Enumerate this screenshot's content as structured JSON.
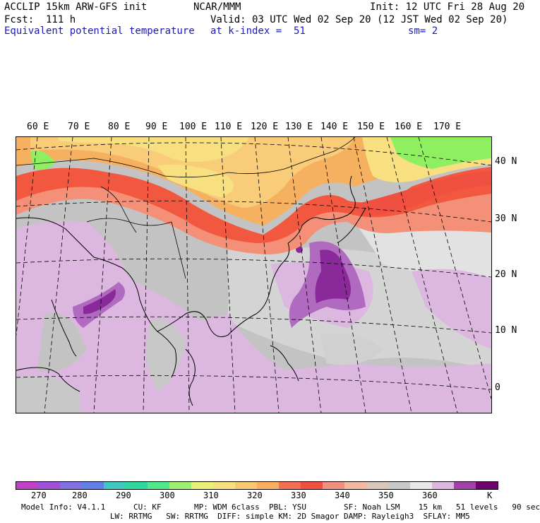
{
  "header": {
    "line1_left": "ACCLIP 15km ARW-GFS init",
    "line1_center": "NCAR/MMM",
    "line1_right": "Init: 12 UTC Fri 28 Aug 20",
    "line2_left": "Fcst:  111 h",
    "line2_right": "Valid: 03 UTC Wed 02 Sep 20 (12 JST Wed 02 Sep 20)",
    "line3_left": "Equivalent potential temperature",
    "line3_center": "at k-index =  51",
    "line3_right": "sm= 2"
  },
  "map": {
    "lon_labels": [
      "60 E",
      "70 E",
      "80 E",
      "90 E",
      "100 E",
      "110 E",
      "120 E",
      "130 E",
      "140 E",
      "150 E",
      "160 E",
      "170 E"
    ],
    "lat_labels": [
      "40 N",
      "30 N",
      "20 N",
      "10 N",
      "0"
    ],
    "colors": {
      "gray": "#c3c3c3",
      "light_gray": "#d4d4d4",
      "lavender": "#dcb8e0",
      "mid_purple": "#b06ac0",
      "dark_purple": "#8a2a9a",
      "orange": "#f5b060",
      "light_orange": "#f8cc78",
      "yellow": "#f8e080",
      "red": "#f25840",
      "salmon": "#f49078",
      "green": "#8ef060"
    }
  },
  "colorbar": {
    "colors": [
      "#c040c8",
      "#a050d8",
      "#8070e0",
      "#6080e8",
      "#40c8c0",
      "#30d8a0",
      "#50e888",
      "#a0f070",
      "#e8f078",
      "#f8e080",
      "#f8c870",
      "#f8b060",
      "#f27050",
      "#f05040",
      "#f29080",
      "#f4b8a0",
      "#d8c8b8",
      "#c8c8c8",
      "#e8e8e8",
      "#dcb8e0",
      "#a040a8",
      "#700070"
    ],
    "labels": [
      "270",
      "280",
      "290",
      "300",
      "310",
      "320",
      "330",
      "340",
      "350",
      "360"
    ],
    "unit": "K"
  },
  "model_info": {
    "line1": "Model Info: V4.1.1      CU: KF       MP: WDM 6class  PBL: YSU        SF: Noah LSM    15 km   51 levels   90 sec",
    "line2": "                   LW: RRTMG   SW: RRTMG  DIFF: simple KM: 2D Smagor DAMP: Rayleigh3  SFLAY: MM5"
  }
}
